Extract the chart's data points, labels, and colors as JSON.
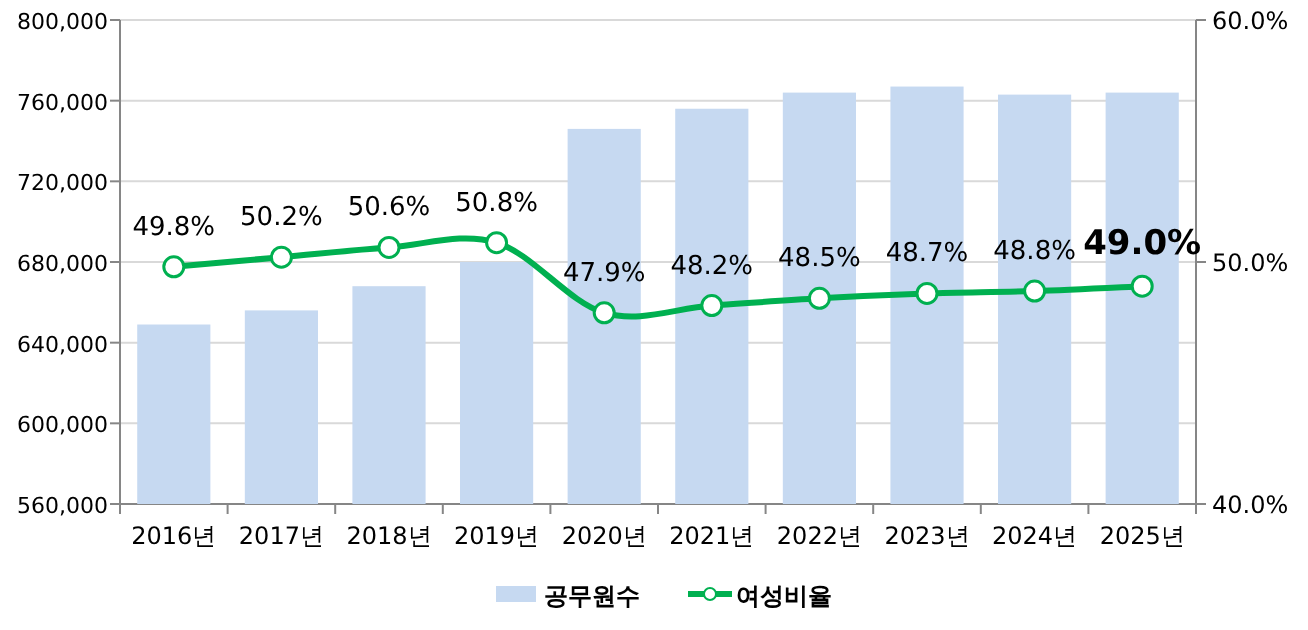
{
  "chart_data": {
    "type": "bar",
    "categories": [
      "2016년",
      "2017년",
      "2018년",
      "2019년",
      "2020년",
      "2021년",
      "2022년",
      "2023년",
      "2024년",
      "2025년"
    ],
    "series": [
      {
        "name": "공무원수",
        "color": "#c6d9f1",
        "values": [
          649000,
          656000,
          668000,
          680000,
          746000,
          756000,
          764000,
          767000,
          763000,
          764000
        ]
      },
      {
        "name": "여성비율",
        "type": "line",
        "axis": "y2",
        "color": "#00b050",
        "marker": "circle",
        "values": [
          49.8,
          50.2,
          50.6,
          50.8,
          47.9,
          48.2,
          48.5,
          48.7,
          48.8,
          49.0
        ],
        "value_labels": [
          "49.8%",
          "50.2%",
          "50.6%",
          "50.8%",
          "47.9%",
          "48.2%",
          "48.5%",
          "48.7%",
          "48.8%",
          "**49.0%**"
        ]
      }
    ],
    "ylim": [
      560000,
      800000
    ],
    "yticks": [
      {
        "value": 560000,
        "label": "560,000"
      },
      {
        "value": 600000,
        "label": "600,000"
      },
      {
        "value": 640000,
        "label": "640,000"
      },
      {
        "value": 680000,
        "label": "680,000"
      },
      {
        "value": 720000,
        "label": "720,000"
      },
      {
        "value": 760000,
        "label": "760,000"
      },
      {
        "value": 800000,
        "label": "800,000"
      }
    ],
    "y2lim": [
      40,
      60
    ],
    "y2ticks": [
      {
        "value": 40,
        "label": "40.0%"
      },
      {
        "value": 50,
        "label": "50.0%"
      },
      {
        "value": 60,
        "label": "60.0%"
      }
    ],
    "grid": "y",
    "legend": "bottom"
  }
}
